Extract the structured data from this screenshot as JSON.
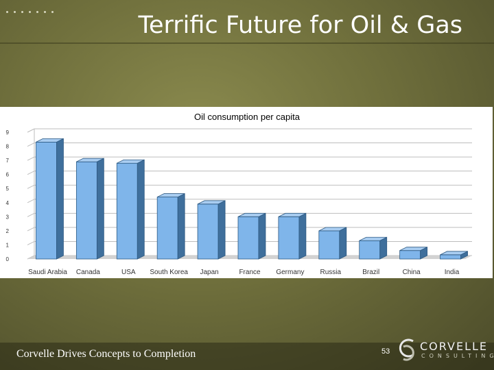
{
  "slide": {
    "title": "Terrific Future for Oil & Gas",
    "footer_text": "Corvelle Drives Concepts to Completion",
    "page_number": "53",
    "logo_name": "CORVELLE",
    "logo_sub": "CONSULTING"
  },
  "colors": {
    "bar_front": "#7fb5ea",
    "bar_side": "#3f6f9c",
    "bar_top": "#a9cdf1",
    "floor": "#d2d2d2",
    "gridline": "#bdbdbd"
  },
  "chart_data": {
    "type": "bar",
    "title": "Oil consumption per capita",
    "xlabel": "",
    "ylabel": "",
    "ylim": [
      0,
      9
    ],
    "y_ticks": [
      "0",
      "1",
      "2",
      "3",
      "4",
      "5",
      "6",
      "7",
      "8",
      "9"
    ],
    "categories": [
      "Saudi Arabia",
      "Canada",
      "USA",
      "South Korea",
      "Japan",
      "France",
      "Germany",
      "Russia",
      "Brazil",
      "China",
      "India"
    ],
    "values": [
      8.3,
      6.9,
      6.8,
      4.4,
      3.9,
      3.0,
      3.0,
      2.0,
      1.3,
      0.6,
      0.3
    ],
    "grid": true,
    "legend": "none",
    "style": "3d"
  }
}
